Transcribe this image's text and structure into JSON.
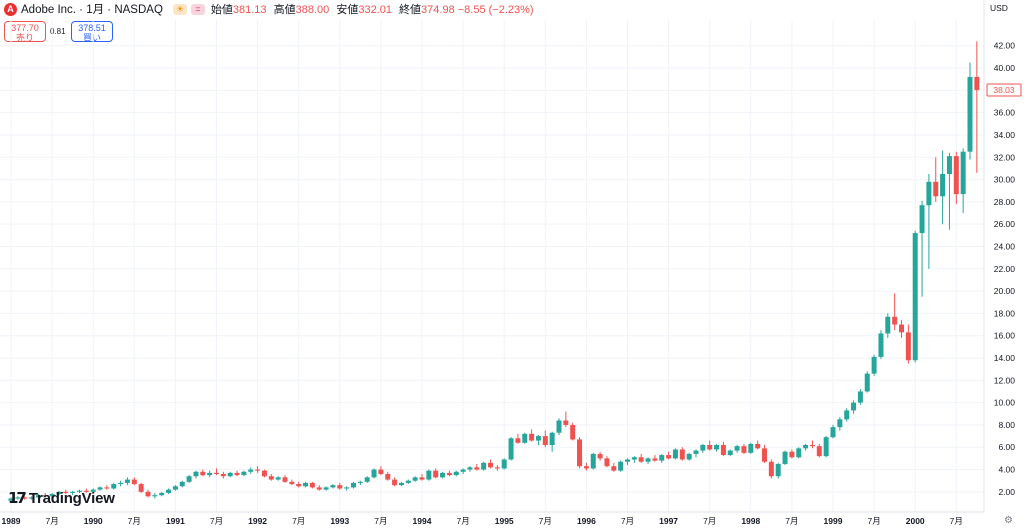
{
  "header": {
    "logo_letter": "A",
    "symbol": "Adobe Inc. · 1月 · NASDAQ",
    "sun_icon": "☀",
    "eq_icon": "=",
    "ohlc": [
      {
        "label": "始値",
        "value": "381.13"
      },
      {
        "label": "高値",
        "value": "388.00"
      },
      {
        "label": "安値",
        "value": "332.01"
      },
      {
        "label": "終値",
        "value": "374.98 −8.55 (−2.23%)"
      }
    ]
  },
  "trade": {
    "sell_price": "377.70",
    "sell_label": "売り",
    "spread": "0.81",
    "buy_price": "378.51",
    "buy_label": "買い"
  },
  "currency": "USD",
  "brand": "TradingView",
  "colors": {
    "up": "#26a69a",
    "down": "#ef5350",
    "grid": "#f0f3fa",
    "text": "#131722"
  },
  "chart_data": {
    "type": "candlestick",
    "series_note": "",
    "y_axis": {
      "ticks": [
        2,
        4,
        6,
        8,
        10,
        12,
        14,
        16,
        18,
        20,
        22,
        24,
        26,
        28,
        30,
        32,
        34,
        36,
        38,
        40,
        42
      ],
      "tick_labels": [
        "2.00",
        "4.00",
        "6.00",
        "8.00",
        "10.00",
        "12.00",
        "14.00",
        "16.00",
        "18.00",
        "20.00",
        "22.00",
        "24.00",
        "26.00",
        "28.00",
        "30.00",
        "32.00",
        "34.00",
        "36.00",
        "38.00",
        "40.00",
        "42.00"
      ],
      "ylim": [
        1.0,
        43.5
      ],
      "last_price_label": "38.03",
      "last_price": 38.03
    },
    "x_axis": {
      "start": "1989-01",
      "tick_labels": [
        {
          "month": 0,
          "label": "1989",
          "bold": true
        },
        {
          "month": 6,
          "label": "7月",
          "bold": false
        },
        {
          "month": 12,
          "label": "1990",
          "bold": true
        },
        {
          "month": 18,
          "label": "7月",
          "bold": false
        },
        {
          "month": 24,
          "label": "1991",
          "bold": true
        },
        {
          "month": 30,
          "label": "7月",
          "bold": false
        },
        {
          "month": 36,
          "label": "1992",
          "bold": true
        },
        {
          "month": 42,
          "label": "7月",
          "bold": false
        },
        {
          "month": 48,
          "label": "1993",
          "bold": true
        },
        {
          "month": 54,
          "label": "7月",
          "bold": false
        },
        {
          "month": 60,
          "label": "1994",
          "bold": true
        },
        {
          "month": 66,
          "label": "7月",
          "bold": false
        },
        {
          "month": 72,
          "label": "1995",
          "bold": true
        },
        {
          "month": 78,
          "label": "7月",
          "bold": false
        },
        {
          "month": 84,
          "label": "1996",
          "bold": true
        },
        {
          "month": 90,
          "label": "7月",
          "bold": false
        },
        {
          "month": 96,
          "label": "1997",
          "bold": true
        },
        {
          "month": 102,
          "label": "7月",
          "bold": false
        },
        {
          "month": 108,
          "label": "1998",
          "bold": true
        },
        {
          "month": 114,
          "label": "7月",
          "bold": false
        },
        {
          "month": 120,
          "label": "1999",
          "bold": true
        },
        {
          "month": 126,
          "label": "7月",
          "bold": false
        },
        {
          "month": 132,
          "label": "2000",
          "bold": true
        },
        {
          "month": 138,
          "label": "7月",
          "bold": false
        }
      ]
    },
    "candles": [
      [
        1.2,
        1.5,
        1.1,
        1.4
      ],
      [
        1.4,
        1.6,
        1.3,
        1.5
      ],
      [
        1.5,
        1.6,
        1.3,
        1.4
      ],
      [
        1.4,
        1.6,
        1.3,
        1.5
      ],
      [
        1.5,
        1.8,
        1.4,
        1.7
      ],
      [
        1.7,
        1.9,
        1.5,
        1.6
      ],
      [
        1.6,
        1.9,
        1.5,
        1.8
      ],
      [
        1.8,
        2.1,
        1.7,
        2.0
      ],
      [
        2.0,
        2.2,
        1.8,
        1.9
      ],
      [
        1.9,
        2.1,
        1.7,
        2.0
      ],
      [
        2.0,
        2.2,
        1.9,
        2.1
      ],
      [
        2.1,
        2.3,
        1.9,
        2.0
      ],
      [
        2.0,
        2.3,
        1.9,
        2.2
      ],
      [
        2.2,
        2.5,
        2.1,
        2.4
      ],
      [
        2.4,
        2.6,
        2.2,
        2.3
      ],
      [
        2.3,
        2.8,
        2.2,
        2.7
      ],
      [
        2.7,
        3.0,
        2.5,
        2.8
      ],
      [
        2.8,
        3.3,
        2.6,
        3.1
      ],
      [
        3.1,
        3.3,
        2.6,
        2.7
      ],
      [
        2.7,
        2.8,
        1.9,
        2.0
      ],
      [
        2.0,
        2.2,
        1.5,
        1.6
      ],
      [
        1.6,
        1.9,
        1.4,
        1.7
      ],
      [
        1.7,
        2.0,
        1.6,
        1.9
      ],
      [
        1.9,
        2.3,
        1.8,
        2.2
      ],
      [
        2.2,
        2.6,
        2.1,
        2.5
      ],
      [
        2.5,
        3.0,
        2.4,
        2.9
      ],
      [
        2.9,
        3.5,
        2.8,
        3.4
      ],
      [
        3.4,
        3.9,
        3.2,
        3.8
      ],
      [
        3.8,
        4.0,
        3.4,
        3.5
      ],
      [
        3.5,
        3.9,
        3.3,
        3.7
      ],
      [
        3.7,
        4.1,
        3.5,
        3.6
      ],
      [
        3.6,
        3.8,
        3.2,
        3.4
      ],
      [
        3.4,
        3.8,
        3.3,
        3.7
      ],
      [
        3.7,
        3.9,
        3.4,
        3.5
      ],
      [
        3.5,
        3.9,
        3.4,
        3.8
      ],
      [
        3.8,
        4.2,
        3.6,
        4.0
      ],
      [
        4.0,
        4.3,
        3.7,
        3.9
      ],
      [
        3.9,
        4.0,
        3.3,
        3.4
      ],
      [
        3.4,
        3.6,
        3.0,
        3.1
      ],
      [
        3.1,
        3.4,
        3.0,
        3.3
      ],
      [
        3.3,
        3.5,
        2.8,
        2.9
      ],
      [
        2.9,
        3.1,
        2.6,
        2.7
      ],
      [
        2.7,
        2.9,
        2.4,
        2.5
      ],
      [
        2.5,
        2.9,
        2.4,
        2.8
      ],
      [
        2.8,
        2.9,
        2.3,
        2.4
      ],
      [
        2.4,
        2.6,
        2.1,
        2.2
      ],
      [
        2.2,
        2.5,
        2.1,
        2.4
      ],
      [
        2.4,
        2.7,
        2.3,
        2.6
      ],
      [
        2.6,
        2.8,
        2.2,
        2.3
      ],
      [
        2.3,
        2.5,
        2.1,
        2.4
      ],
      [
        2.4,
        2.9,
        2.3,
        2.8
      ],
      [
        2.8,
        3.0,
        2.6,
        2.9
      ],
      [
        2.9,
        3.4,
        2.8,
        3.3
      ],
      [
        3.3,
        4.1,
        3.2,
        4.0
      ],
      [
        4.0,
        4.3,
        3.5,
        3.6
      ],
      [
        3.6,
        3.8,
        3.0,
        3.1
      ],
      [
        3.1,
        3.3,
        2.5,
        2.6
      ],
      [
        2.6,
        2.9,
        2.5,
        2.8
      ],
      [
        2.8,
        3.1,
        2.7,
        3.0
      ],
      [
        3.0,
        3.4,
        2.9,
        3.3
      ],
      [
        3.3,
        3.6,
        3.0,
        3.1
      ],
      [
        3.1,
        4.0,
        3.0,
        3.9
      ],
      [
        3.9,
        4.1,
        3.2,
        3.3
      ],
      [
        3.3,
        3.8,
        3.2,
        3.7
      ],
      [
        3.7,
        3.9,
        3.4,
        3.5
      ],
      [
        3.5,
        3.9,
        3.4,
        3.8
      ],
      [
        3.8,
        4.1,
        3.6,
        4.0
      ],
      [
        4.0,
        4.3,
        3.8,
        4.2
      ],
      [
        4.2,
        4.5,
        3.9,
        4.0
      ],
      [
        4.0,
        4.7,
        3.9,
        4.6
      ],
      [
        4.6,
        4.9,
        4.1,
        4.2
      ],
      [
        4.2,
        4.4,
        3.9,
        4.1
      ],
      [
        4.1,
        5.0,
        4.0,
        4.9
      ],
      [
        4.9,
        6.9,
        4.8,
        6.8
      ],
      [
        6.8,
        7.2,
        6.3,
        6.4
      ],
      [
        6.4,
        7.3,
        6.3,
        7.2
      ],
      [
        7.2,
        7.6,
        6.5,
        6.6
      ],
      [
        6.6,
        7.1,
        6.2,
        7.0
      ],
      [
        7.0,
        7.5,
        6.0,
        6.2
      ],
      [
        6.2,
        7.4,
        5.6,
        7.3
      ],
      [
        7.3,
        8.6,
        7.1,
        8.4
      ],
      [
        8.4,
        9.2,
        7.8,
        8.0
      ],
      [
        8.0,
        8.2,
        6.6,
        6.7
      ],
      [
        6.7,
        6.9,
        4.1,
        4.3
      ],
      [
        4.3,
        4.6,
        3.9,
        4.1
      ],
      [
        4.1,
        5.5,
        4.0,
        5.4
      ],
      [
        5.4,
        5.6,
        4.8,
        5.0
      ],
      [
        5.0,
        5.2,
        4.2,
        4.3
      ],
      [
        4.3,
        4.6,
        3.8,
        3.9
      ],
      [
        3.9,
        4.8,
        3.8,
        4.7
      ],
      [
        4.7,
        5.0,
        4.4,
        4.9
      ],
      [
        4.9,
        5.2,
        4.6,
        5.1
      ],
      [
        5.1,
        5.4,
        4.6,
        4.7
      ],
      [
        4.7,
        5.1,
        4.5,
        5.0
      ],
      [
        5.0,
        5.3,
        4.7,
        4.8
      ],
      [
        4.8,
        5.4,
        4.6,
        5.3
      ],
      [
        5.3,
        5.6,
        4.9,
        5.0
      ],
      [
        5.0,
        5.9,
        4.9,
        5.8
      ],
      [
        5.8,
        6.0,
        4.8,
        4.9
      ],
      [
        4.9,
        5.5,
        4.8,
        5.4
      ],
      [
        5.4,
        5.8,
        5.1,
        5.7
      ],
      [
        5.7,
        6.3,
        5.5,
        6.2
      ],
      [
        6.2,
        6.6,
        5.7,
        5.8
      ],
      [
        5.8,
        6.3,
        5.6,
        6.2
      ],
      [
        6.2,
        6.5,
        5.2,
        5.3
      ],
      [
        5.3,
        5.8,
        5.2,
        5.7
      ],
      [
        5.7,
        6.2,
        5.5,
        6.1
      ],
      [
        6.1,
        6.3,
        5.4,
        5.5
      ],
      [
        5.5,
        6.4,
        5.4,
        6.3
      ],
      [
        6.3,
        6.6,
        5.8,
        5.9
      ],
      [
        5.9,
        6.2,
        4.6,
        4.7
      ],
      [
        4.7,
        4.9,
        3.2,
        3.4
      ],
      [
        3.4,
        4.6,
        3.2,
        4.5
      ],
      [
        4.5,
        5.7,
        4.4,
        5.6
      ],
      [
        5.6,
        5.8,
        5.0,
        5.1
      ],
      [
        5.1,
        6.0,
        5.0,
        5.9
      ],
      [
        5.9,
        6.3,
        5.7,
        6.2
      ],
      [
        6.2,
        6.6,
        5.9,
        6.1
      ],
      [
        6.1,
        6.3,
        5.1,
        5.2
      ],
      [
        5.2,
        7.0,
        5.1,
        6.9
      ],
      [
        6.9,
        8.0,
        6.8,
        7.8
      ],
      [
        7.8,
        8.7,
        7.5,
        8.5
      ],
      [
        8.5,
        9.5,
        8.3,
        9.3
      ],
      [
        9.3,
        10.2,
        9.0,
        10.0
      ],
      [
        10.0,
        11.2,
        9.8,
        11.0
      ],
      [
        11.0,
        12.8,
        10.9,
        12.6
      ],
      [
        12.6,
        14.3,
        12.4,
        14.1
      ],
      [
        14.1,
        16.5,
        13.9,
        16.2
      ],
      [
        16.2,
        18.0,
        15.8,
        17.7
      ],
      [
        17.7,
        19.8,
        16.5,
        17.0
      ],
      [
        17.0,
        17.4,
        15.8,
        16.3
      ],
      [
        16.3,
        17.0,
        13.5,
        13.8
      ],
      [
        13.8,
        25.4,
        13.6,
        25.2
      ],
      [
        25.2,
        28.1,
        19.5,
        27.7
      ],
      [
        27.7,
        30.5,
        22.0,
        29.8
      ],
      [
        29.8,
        32.0,
        28.0,
        28.5
      ],
      [
        28.5,
        32.6,
        26.0,
        30.5
      ],
      [
        30.5,
        32.4,
        25.5,
        32.1
      ],
      [
        32.1,
        32.5,
        27.8,
        28.7
      ],
      [
        28.7,
        32.8,
        27.0,
        32.5
      ],
      [
        32.5,
        40.5,
        31.8,
        39.2
      ],
      [
        39.2,
        42.4,
        30.6,
        38.03
      ]
    ]
  }
}
